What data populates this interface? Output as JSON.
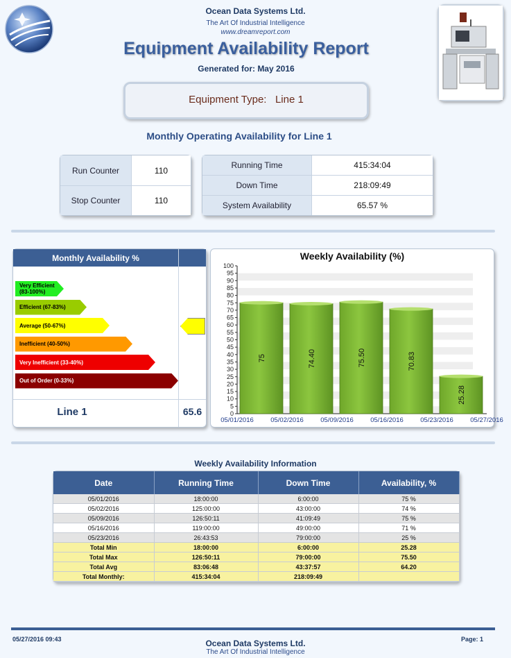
{
  "header": {
    "company": "Ocean Data Systems Ltd.",
    "tagline": "The Art Of Industrial Intelligence",
    "website": "www.dreamreport.com",
    "title": "Equipment Availability Report",
    "generated": "Generated for: May 2016"
  },
  "equipment": {
    "label": "Equipment Type:",
    "value": "Line 1"
  },
  "monthly_heading": "Monthly Operating Availability for Line 1",
  "counters": {
    "run_label": "Run Counter",
    "run_value": "110",
    "stop_label": "Stop Counter",
    "stop_value": "110"
  },
  "times": {
    "running_label": "Running Time",
    "running_value": "415:34:04",
    "down_label": "Down Time",
    "down_value": "218:09:49",
    "avail_label": "System Availability",
    "avail_value": "65.57 %"
  },
  "monthly_availability": {
    "title": "Monthly Availability %",
    "line_name": "Line 1",
    "value": "65.6",
    "levels": [
      {
        "label": "Very Efficient (83-100%)",
        "color": "#22ee22",
        "text_color": "#000000"
      },
      {
        "label": "Efficient (67-83%)",
        "color": "#99cc00",
        "text_color": "#000000"
      },
      {
        "label": "Average (50-67%)",
        "color": "#ffff00",
        "text_color": "#000000"
      },
      {
        "label": "Inefficient (40-50%)",
        "color": "#ff9900",
        "text_color": "#000000"
      },
      {
        "label": "Very Inefficient (33-40%)",
        "color": "#ee0000",
        "text_color": "#ffffff"
      },
      {
        "label": "Out of Order (0-33%)",
        "color": "#8b0000",
        "text_color": "#ffffff"
      }
    ],
    "active_level": 2
  },
  "chart_data": {
    "type": "bar",
    "title": "Weekly Availability (%)",
    "x_ticks": [
      "05/01/2016",
      "05/02/2016",
      "05/09/2016",
      "05/16/2016",
      "05/23/2016",
      "05/27/2016"
    ],
    "values": [
      75,
      74.4,
      75.5,
      70.83,
      25.28
    ],
    "value_labels": [
      "75",
      "74.40",
      "75.50",
      "70.83",
      "25.28"
    ],
    "y_ticks": [
      "0",
      "5",
      "10",
      "15",
      "20",
      "25",
      "30",
      "35",
      "40",
      "45",
      "50",
      "55",
      "60",
      "65",
      "70",
      "75",
      "80",
      "85",
      "90",
      "95",
      "100"
    ],
    "ylim": [
      0,
      100
    ],
    "bar_color": "#8cc63f",
    "grid": true
  },
  "table": {
    "title": "Weekly Availability Information",
    "columns": [
      "Date",
      "Running Time",
      "Down Time",
      "Availability, %"
    ],
    "rows": [
      [
        "05/01/2016",
        "18:00:00",
        "6:00:00",
        "75 %"
      ],
      [
        "05/02/2016",
        "125:00:00",
        "43:00:00",
        "74 %"
      ],
      [
        "05/09/2016",
        "126:50:11",
        "41:09:49",
        "75 %"
      ],
      [
        "05/16/2016",
        "119:00:00",
        "49:00:00",
        "71 %"
      ],
      [
        "05/23/2016",
        "26:43:53",
        "79:00:00",
        "25 %"
      ]
    ],
    "summary": [
      [
        "Total Min",
        "18:00:00",
        "6:00:00",
        "25.28"
      ],
      [
        "Total Max",
        "126:50:11",
        "79:00:00",
        "75.50"
      ],
      [
        "Total Avg",
        "83:06:48",
        "43:37:57",
        "64.20"
      ],
      [
        "Total Monthly:",
        "415:34:04",
        "218:09:49",
        ""
      ]
    ]
  },
  "footer": {
    "datetime": "05/27/2016 09:43",
    "company": "Ocean Data Systems Ltd.",
    "tagline": "The Art Of Industrial Intelligence",
    "page": "Page: 1"
  }
}
